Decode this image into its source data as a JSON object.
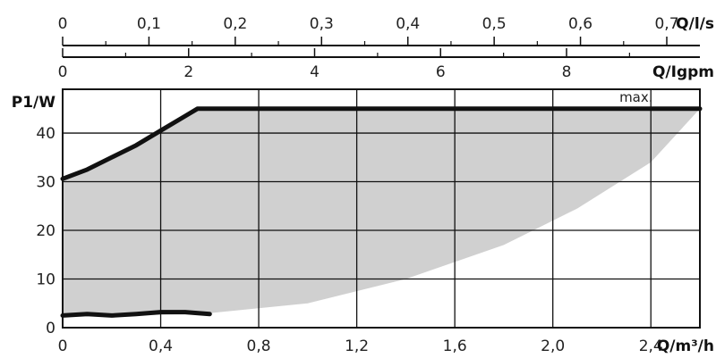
{
  "chart_data": {
    "type": "area",
    "axes": {
      "top_ls": {
        "label": "Q/l/s",
        "ticks": [
          "0",
          "0,1",
          "0,2",
          "0,3",
          "0,4",
          "0,5",
          "0,6",
          "0,7"
        ],
        "range": [
          0,
          0.7
        ]
      },
      "top_igpm": {
        "label": "Q/Igpm",
        "ticks": [
          "0",
          "2",
          "4",
          "6",
          "8"
        ],
        "range": [
          0,
          8
        ]
      },
      "x": {
        "label": "Q/m³/h",
        "ticks": [
          "0",
          "0,4",
          "0,8",
          "1,2",
          "1,6",
          "2,0",
          "2,4"
        ],
        "range": [
          0,
          2.6
        ]
      },
      "y": {
        "label": "P1/W",
        "ticks": [
          "0",
          "10",
          "20",
          "30",
          "40"
        ],
        "range": [
          0,
          49
        ]
      }
    },
    "grid": true,
    "series": [
      {
        "name": "max.",
        "x": [
          0,
          0.1,
          0.2,
          0.3,
          0.4,
          0.5,
          0.55,
          0.6,
          1.0,
          1.5,
          2.0,
          2.5,
          2.6
        ],
        "y": [
          30.6,
          32.5,
          35,
          37.5,
          40.5,
          43.5,
          45,
          45,
          45,
          45,
          45,
          45,
          45
        ]
      },
      {
        "name": "",
        "x": [
          0,
          0.1,
          0.2,
          0.3,
          0.4,
          0.5,
          0.6
        ],
        "y": [
          2.5,
          2.8,
          2.5,
          2.8,
          3.2,
          3.2,
          2.8
        ]
      }
    ],
    "area": {
      "upper": {
        "x": [
          0,
          0.1,
          0.2,
          0.3,
          0.4,
          0.5,
          0.55,
          0.6,
          1.0,
          1.5,
          2.0,
          2.5,
          2.6
        ],
        "y": [
          30.6,
          32.5,
          35,
          37.5,
          40.5,
          43.5,
          45,
          45,
          45,
          45,
          45,
          45,
          45
        ]
      },
      "lower": {
        "x": [
          0,
          0.3,
          0.6,
          1.0,
          1.4,
          1.8,
          2.1,
          2.4,
          2.6
        ],
        "y": [
          2.5,
          2.5,
          3.0,
          5.0,
          10.0,
          17.0,
          24.5,
          34.0,
          45.0
        ]
      }
    },
    "annotations": [
      "max."
    ],
    "colors": {
      "area": "#d0d0d0",
      "line": "#111111",
      "grid": "#111111"
    }
  }
}
